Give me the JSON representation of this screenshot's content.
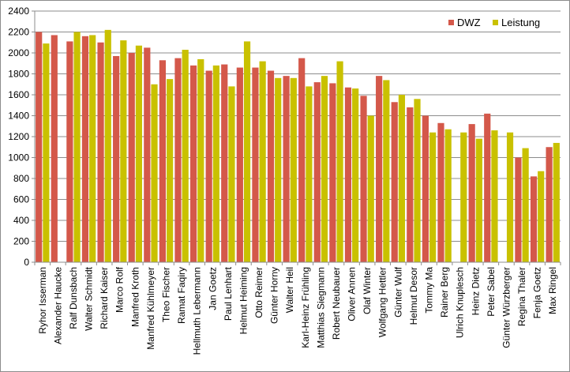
{
  "chart_data": {
    "type": "bar",
    "title": "",
    "xlabel": "",
    "ylabel": "",
    "ylim": [
      0,
      2400
    ],
    "ytick_step": 200,
    "grid": "horizontal",
    "legend_position": "top-right",
    "categories": [
      "Ryhor Isserman",
      "Alexander Haucke",
      "Ralf Dunsbach",
      "Walter Schmidt",
      "Richard Kaiser",
      "Marco Rolf",
      "Manfred Kroth",
      "Manfred Kühlmeyer",
      "Theo Fischer",
      "Ramat Faqiry",
      "Hellmuth Lebermann",
      "Jan Goetz",
      "Paul Lenhart",
      "Helmut Heiming",
      "Otto Reimer",
      "Günter Horny",
      "Walter Heil",
      "Karl-Heinz Frühling",
      "Matthias Siegmann",
      "Robert Neubauer",
      "Oliver Annen",
      "Olaf Winter",
      "Wolfgang Hettler",
      "Günter Wulf",
      "Helmut Desor",
      "Tommy Ma",
      "Rainer Berg",
      "Ulrich Knuplesch",
      "Heinz Dietz",
      "Peter Sabel",
      "Günter Würzberger",
      "Regina Thaler",
      "Fenja Goetz",
      "Max Ringel"
    ],
    "series": [
      {
        "name": "DWZ",
        "color": "#d4584a",
        "values": [
          2200,
          2170,
          2110,
          2160,
          2100,
          1970,
          2000,
          2050,
          1930,
          1950,
          1880,
          1830,
          1890,
          1860,
          1860,
          1830,
          1780,
          1950,
          1720,
          1710,
          1670,
          1590,
          1780,
          1530,
          1480,
          1400,
          1330,
          null,
          1320,
          1420,
          null,
          1000,
          820,
          1100
        ]
      },
      {
        "name": "Leistung",
        "color": "#c9c100",
        "values": [
          2090,
          null,
          2200,
          2170,
          2220,
          2120,
          2070,
          1700,
          1750,
          2030,
          1940,
          1880,
          1680,
          2110,
          1920,
          1760,
          1760,
          1680,
          1780,
          1920,
          1660,
          1400,
          1740,
          1600,
          1560,
          1240,
          1270,
          1240,
          1180,
          1260,
          1240,
          1090,
          870,
          1140
        ]
      }
    ]
  }
}
